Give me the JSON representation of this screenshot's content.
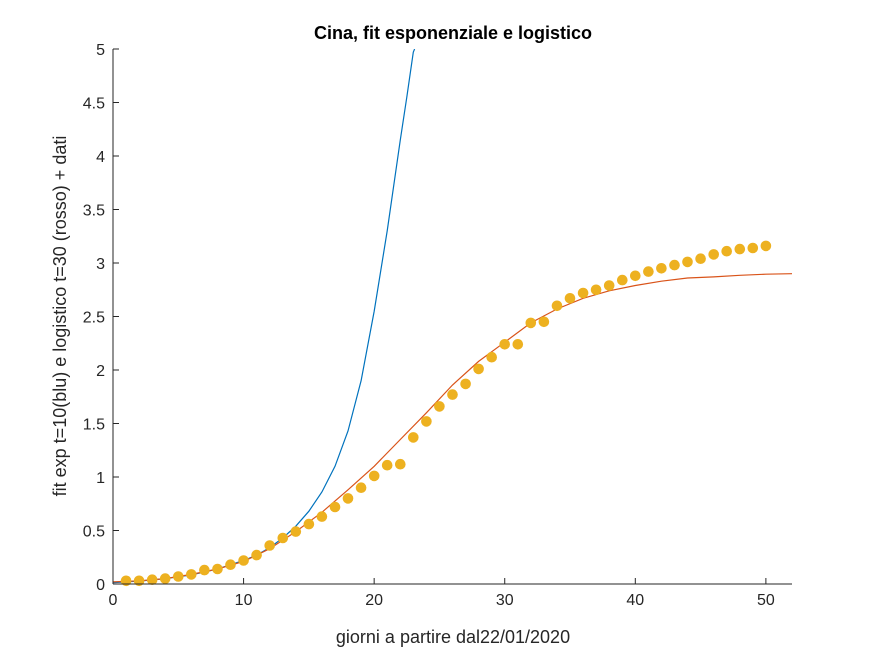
{
  "chart_data": {
    "type": "line",
    "title": "Cina, fit esponenziale e logistico",
    "xlabel": "giorni a partire dal22/01/2020",
    "ylabel": "fit exp t=10(blu) e logistico t=30 (rosso) + dati",
    "xlim": [
      0,
      52
    ],
    "ylim": [
      0,
      5
    ],
    "xticks": [
      0,
      10,
      20,
      30,
      40,
      50
    ],
    "yticks": [
      0,
      0.5,
      1,
      1.5,
      2,
      2.5,
      3,
      3.5,
      4,
      4.5,
      5
    ],
    "grid": false,
    "legend": "none",
    "colors": {
      "exp_fit": "#0072BD",
      "logistic_fit": "#D95319",
      "data": "#EDB120",
      "axis": "#262626"
    },
    "series": [
      {
        "kind": "line",
        "color": "#0072BD",
        "x": [
          0,
          2,
          4,
          6,
          8,
          10,
          11,
          12,
          13,
          14,
          15,
          16,
          17,
          18,
          19,
          20,
          21,
          22,
          22.5,
          23,
          23.1
        ],
        "y": [
          0.013,
          0.027,
          0.05,
          0.085,
          0.14,
          0.22,
          0.27,
          0.34,
          0.43,
          0.54,
          0.68,
          0.86,
          1.1,
          1.43,
          1.9,
          2.55,
          3.3,
          4.15,
          4.55,
          4.97,
          5.0
        ]
      },
      {
        "kind": "line",
        "color": "#D95319",
        "x": [
          0,
          2,
          4,
          6,
          8,
          10,
          12,
          14,
          16,
          18,
          20,
          22,
          24,
          26,
          28,
          30,
          32,
          34,
          36,
          38,
          40,
          42,
          44,
          46,
          48,
          50,
          52
        ],
        "y": [
          0.02,
          0.03,
          0.05,
          0.09,
          0.14,
          0.21,
          0.33,
          0.49,
          0.67,
          0.88,
          1.1,
          1.35,
          1.6,
          1.86,
          2.08,
          2.26,
          2.44,
          2.57,
          2.67,
          2.74,
          2.79,
          2.83,
          2.86,
          2.87,
          2.885,
          2.895,
          2.9
        ]
      },
      {
        "kind": "scatter",
        "color": "#EDB120",
        "x": [
          1,
          2,
          3,
          4,
          5,
          6,
          7,
          8,
          9,
          10,
          11,
          12,
          13,
          14,
          15,
          16,
          17,
          18,
          19,
          20,
          21,
          22,
          23,
          24,
          25,
          26,
          27,
          28,
          29,
          30,
          31,
          32,
          33,
          34,
          35,
          36,
          37,
          38,
          39,
          40,
          41,
          42,
          43,
          44,
          45,
          46,
          47,
          48,
          49,
          50
        ],
        "y": [
          0.03,
          0.03,
          0.04,
          0.05,
          0.07,
          0.09,
          0.13,
          0.14,
          0.18,
          0.22,
          0.27,
          0.36,
          0.43,
          0.49,
          0.56,
          0.63,
          0.72,
          0.8,
          0.9,
          1.01,
          1.11,
          1.12,
          1.37,
          1.52,
          1.66,
          1.77,
          1.87,
          2.01,
          2.12,
          2.24,
          2.24,
          2.44,
          2.45,
          2.6,
          2.67,
          2.72,
          2.75,
          2.79,
          2.84,
          2.88,
          2.92,
          2.95,
          2.98,
          3.01,
          3.04,
          3.08,
          3.11,
          3.13,
          3.14,
          3.16
        ]
      }
    ]
  }
}
